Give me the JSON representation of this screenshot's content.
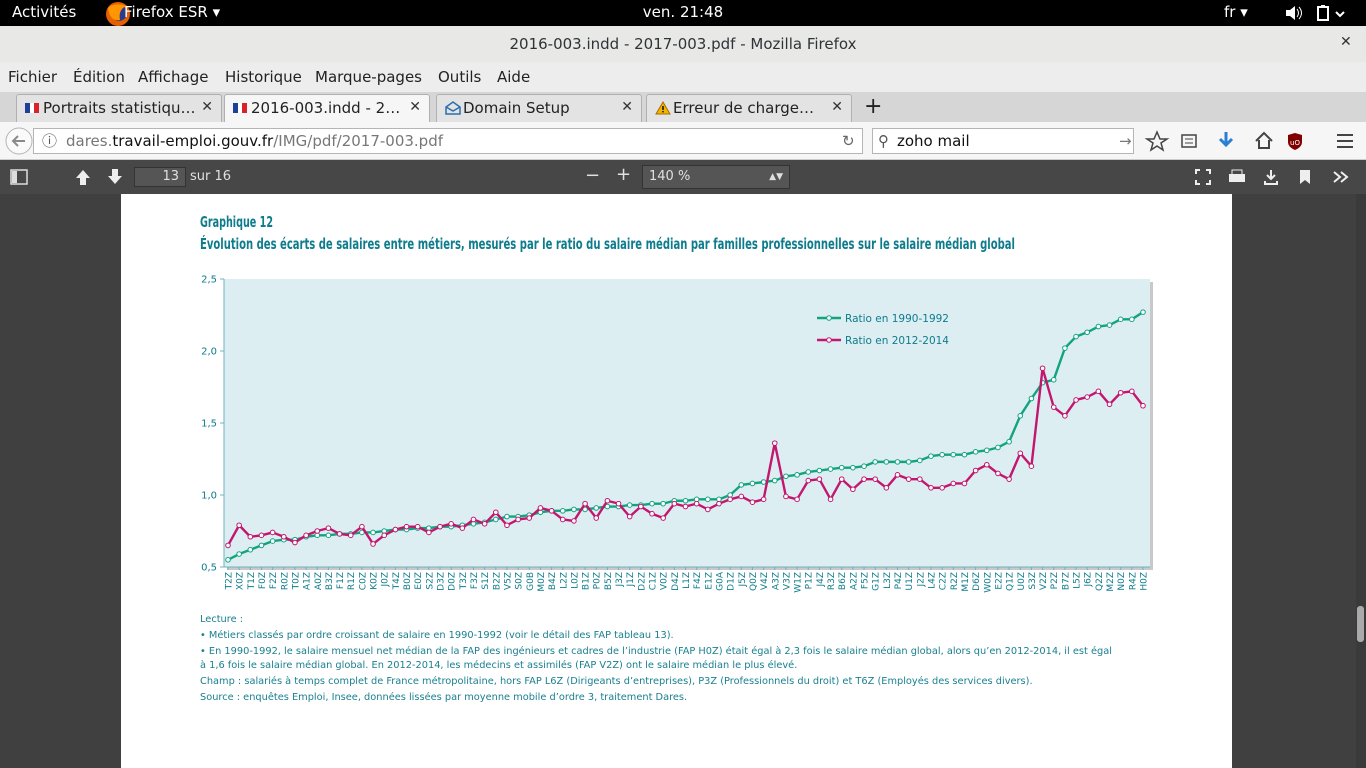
{
  "top_bar": {
    "activities": "Activités",
    "app": "Firefox ESR",
    "clock": "ven. 21:48",
    "language": "fr"
  },
  "window": {
    "title": "2016-003.indd - 2017-003.pdf - Mozilla Firefox"
  },
  "menu": [
    "Fichier",
    "Édition",
    "Affichage",
    "Historique",
    "Marque-pages",
    "Outils",
    "Aide"
  ],
  "tabs": [
    "Portraits statistiqu…",
    "2016-003.indd - 2…",
    "Domain Setup",
    "Erreur de charge…"
  ],
  "url_bar": {
    "url_prefix": "dares.",
    "url_domain": "travail-emploi.gouv.fr",
    "url_path": "/IMG/pdf/2017-003.pdf",
    "search": "zoho mail"
  },
  "pdf_toolbar": {
    "page": 13,
    "pages": "sur 16",
    "zoom": "140 %"
  },
  "chart_data": {
    "type": "line",
    "title": "Graphique 12",
    "subtitle": "Évolution des écarts de salaires entre métiers, mesurés par le ratio du salaire médian par familles professionnelles sur le salaire médian global",
    "categories": [
      "T2Z",
      "X0Z",
      "T1Z",
      "F0Z",
      "F2Z",
      "R0Z",
      "T0Z",
      "A1Z",
      "A0Z",
      "B3Z",
      "F1Z",
      "R1Z",
      "C0Z",
      "K0Z",
      "J0Z",
      "T4Z",
      "B0Z",
      "E0Z",
      "S2Z",
      "D3Z",
      "D0Z",
      "T3Z",
      "F3Z",
      "S1Z",
      "B2Z",
      "V5Z",
      "S0Z",
      "G0B",
      "M0Z",
      "B4Z",
      "L2Z",
      "L0Z",
      "B1Z",
      "P0Z",
      "B5Z",
      "J3Z",
      "J1Z",
      "D2Z",
      "C1Z",
      "V0Z",
      "D4Z",
      "L1Z",
      "F4Z",
      "E1Z",
      "G0A",
      "D1Z",
      "J5Z",
      "Q0Z",
      "V4Z",
      "A3Z",
      "V3Z",
      "W1Z",
      "P1Z",
      "J4Z",
      "R3Z",
      "B6Z",
      "A2Z",
      "F5Z",
      "G1Z",
      "L3Z",
      "P4Z",
      "U1Z",
      "J2Z",
      "L4Z",
      "C2Z",
      "R2Z",
      "M1Z",
      "D6Z",
      "W0Z",
      "E2Z",
      "Q1Z",
      "U0Z",
      "S3Z",
      "V2Z",
      "P2Z",
      "B7Z",
      "L5Z",
      "J6Z",
      "Q2Z",
      "M2Z",
      "N0Z",
      "R4Z",
      "H0Z"
    ],
    "series": [
      {
        "name": "Ratio en 1990-1992",
        "color": "#12a37f",
        "values": [
          0.55,
          0.59,
          0.62,
          0.65,
          0.68,
          0.69,
          0.69,
          0.71,
          0.72,
          0.72,
          0.73,
          0.73,
          0.74,
          0.74,
          0.75,
          0.76,
          0.76,
          0.77,
          0.77,
          0.78,
          0.78,
          0.79,
          0.8,
          0.81,
          0.83,
          0.85,
          0.85,
          0.86,
          0.88,
          0.89,
          0.89,
          0.9,
          0.9,
          0.91,
          0.92,
          0.92,
          0.93,
          0.93,
          0.94,
          0.94,
          0.96,
          0.96,
          0.97,
          0.97,
          0.97,
          1.0,
          1.07,
          1.08,
          1.09,
          1.1,
          1.13,
          1.14,
          1.16,
          1.17,
          1.18,
          1.19,
          1.19,
          1.2,
          1.23,
          1.23,
          1.23,
          1.23,
          1.24,
          1.27,
          1.28,
          1.28,
          1.28,
          1.3,
          1.31,
          1.33,
          1.37,
          1.55,
          1.67,
          1.78,
          1.8,
          2.02,
          2.1,
          2.13,
          2.17,
          2.18,
          2.22,
          2.22,
          2.27
        ]
      },
      {
        "name": "Ratio en 2012-2014",
        "color": "#c2166f",
        "values": [
          0.65,
          0.79,
          0.71,
          0.72,
          0.74,
          0.71,
          0.67,
          0.72,
          0.75,
          0.77,
          0.73,
          0.72,
          0.78,
          0.66,
          0.72,
          0.76,
          0.78,
          0.78,
          0.74,
          0.78,
          0.8,
          0.77,
          0.83,
          0.8,
          0.88,
          0.79,
          0.83,
          0.84,
          0.91,
          0.89,
          0.83,
          0.82,
          0.94,
          0.84,
          0.96,
          0.94,
          0.85,
          0.92,
          0.87,
          0.84,
          0.94,
          0.92,
          0.94,
          0.9,
          0.94,
          0.97,
          0.99,
          0.95,
          0.97,
          1.36,
          0.99,
          0.97,
          1.1,
          1.11,
          0.97,
          1.11,
          1.04,
          1.11,
          1.11,
          1.05,
          1.14,
          1.11,
          1.11,
          1.05,
          1.05,
          1.08,
          1.08,
          1.17,
          1.21,
          1.15,
          1.11,
          1.29,
          1.2,
          1.88,
          1.61,
          1.55,
          1.66,
          1.68,
          1.72,
          1.63,
          1.71,
          1.72,
          1.62
        ]
      }
    ],
    "ylim": [
      0.5,
      2.5
    ],
    "yticks": [
      {
        "value": 0.5,
        "label": "0,5"
      },
      {
        "value": 1.0,
        "label": "1,0"
      },
      {
        "value": 1.5,
        "label": "1,5"
      },
      {
        "value": 2.0,
        "label": "2,0"
      },
      {
        "value": 2.5,
        "label": "2,5"
      }
    ],
    "grid": false,
    "legend": "upper right",
    "plot_background": "#ddeef2"
  },
  "notes": [
    "Lecture :",
    "• Métiers classés par ordre croissant de salaire en 1990-1992 (voir le détail des FAP tableau 13).",
    "• En 1990-1992, le salaire mensuel net médian de la FAP des ingénieurs et cadres de l’industrie (FAP H0Z) était égal à 2,3 fois le salaire médian global, alors qu’en 2012-2014, il est égal",
    "à 1,6 fois le salaire médian global. En 2012-2014, les médecins et assimilés (FAP V2Z) ont le salaire médian le plus élevé.",
    "Champ : salariés à temps complet de France métropolitaine, hors FAP L6Z (Dirigeants d’entreprises), P3Z (Professionnels du droit) et T6Z (Employés des services divers).",
    "Source : enquêtes Emploi, Insee, données lissées par moyenne mobile d’ordre 3, traitement Dares."
  ]
}
